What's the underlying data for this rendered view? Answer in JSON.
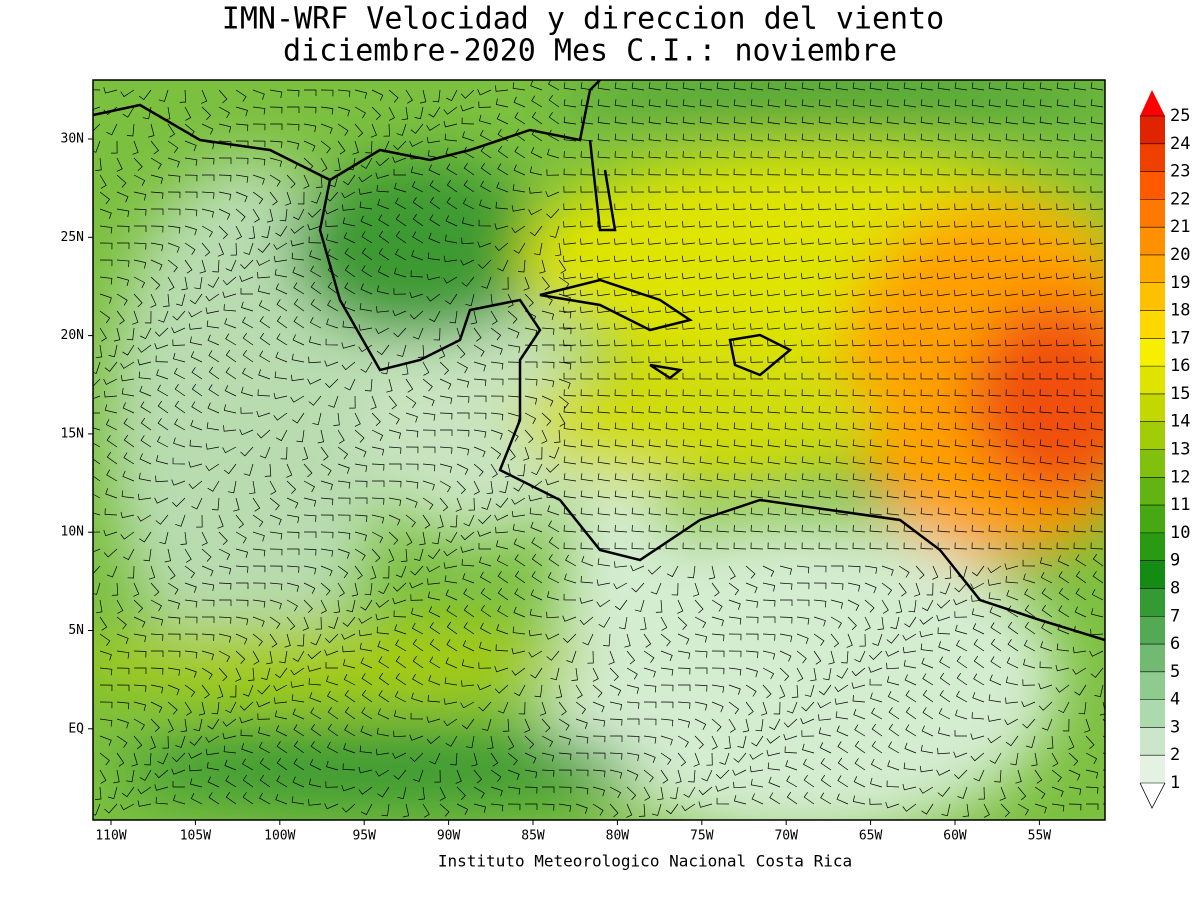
{
  "title": [
    "IMN-WRF Velocidad y direccion del viento",
    "diciembre-2020 Mes C.I.: noviembre"
  ],
  "lat_labels": [
    "30N",
    "25N",
    "20N",
    "15N",
    "10N",
    "5N",
    "EQ"
  ],
  "lon_labels": [
    "110W",
    "105W",
    "100W",
    "95W",
    "90W",
    "85W",
    "80W",
    "75W",
    "70W",
    "65W",
    "60W",
    "55W"
  ],
  "colorbar": {
    "levels": [
      1,
      2,
      3,
      4,
      5,
      6,
      7,
      8,
      9,
      10,
      11,
      12,
      13,
      14,
      15,
      16,
      17,
      18,
      19,
      20,
      21,
      22,
      23,
      24,
      25
    ],
    "colors": [
      "#e4f2e4",
      "#cbe6cb",
      "#addaad",
      "#8fca8f",
      "#72ba72",
      "#54aa54",
      "#349a34",
      "#148c14",
      "#2a9a12",
      "#46a812",
      "#62b412",
      "#82c00e",
      "#a2cc08",
      "#c2d800",
      "#dee400",
      "#f6f000",
      "#ffd800",
      "#ffc000",
      "#ffa800",
      "#ff9000",
      "#ff7800",
      "#ff5a00",
      "#f04000",
      "#e02400"
    ],
    "arrow_color": "#ff0000"
  },
  "footer": "Instituto Meteorologico Nacional Costa Rica"
}
